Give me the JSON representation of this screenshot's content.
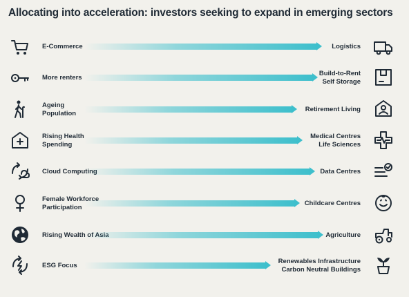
{
  "title": "Allocating into acceleration: investors seeking to expand in emerging sectors",
  "accent_color": "#3ebfcc",
  "rows": [
    {
      "left": "E-Commerce",
      "right": "Logistics",
      "left_icon": "shopping-cart-icon",
      "right_icon": "delivery-truck-icon"
    },
    {
      "left": "More renters",
      "right": "Build-to-Rent\nSelf Storage",
      "left_icon": "key-icon",
      "right_icon": "storage-box-icon"
    },
    {
      "left": "Ageing\nPopulation",
      "right": "Retirement Living",
      "left_icon": "elderly-person-icon",
      "right_icon": "home-person-icon"
    },
    {
      "left": "Rising Health\nSpending",
      "right": "Medical Centres\nLife Sciences",
      "left_icon": "health-house-icon",
      "right_icon": "medical-cross-icon"
    },
    {
      "left": "Cloud Computing",
      "right": "Data Centres",
      "left_icon": "cloud-sync-icon",
      "right_icon": "checklist-icon"
    },
    {
      "left": "Female Workforce\nParticipation",
      "right": "Childcare Centres",
      "left_icon": "female-symbol-icon",
      "right_icon": "smiley-face-icon"
    },
    {
      "left": "Rising Wealth of Asia",
      "right": "Agriculture",
      "left_icon": "globe-asia-icon",
      "right_icon": "tractor-icon"
    },
    {
      "left": "ESG Focus",
      "right": "Renewables Infrastructure\nCarbon Neutral Buildings",
      "left_icon": "energy-leaf-icon",
      "right_icon": "plant-pot-icon"
    }
  ]
}
